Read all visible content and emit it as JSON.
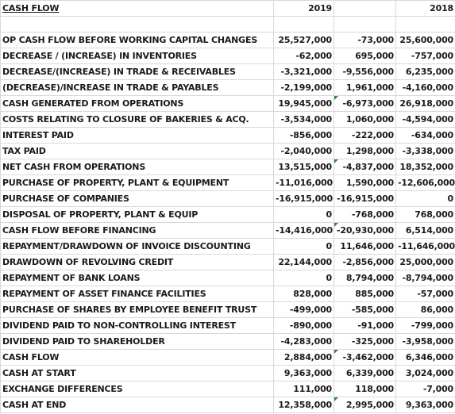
{
  "header": {
    "title": "CASH FLOW",
    "year_a": "2019",
    "year_b": "2018"
  },
  "rows": [
    {
      "label": "",
      "v2019": "",
      "vdiff": "",
      "v2018": "",
      "diff_color": ""
    },
    {
      "label": "OP CASH FLOW BEFORE WORKING CAPITAL CHANGES",
      "v2019": "25,527,000",
      "vdiff": "-73,000",
      "v2018": "25,600,000",
      "diff_color": "r"
    },
    {
      "label": "DECREASE / (INCREASE) IN INVENTORIES",
      "v2019": "-62,000",
      "vdiff": "695,000",
      "v2018": "-757,000",
      "diff_color": "b"
    },
    {
      "label": "DECREASE/(INCREASE) IN TRADE & RECEIVABLES",
      "v2019": "-3,321,000",
      "vdiff": "-9,556,000",
      "v2018": "6,235,000",
      "diff_color": "r"
    },
    {
      "label": "(DECREASE)/INCREASE IN TRADE & PAYABLES",
      "v2019": "-2,199,000",
      "vdiff": "1,961,000",
      "v2018": "-4,160,000",
      "diff_color": "b"
    },
    {
      "label": "CASH GENERATED FROM OPERATIONS",
      "v2019": "19,945,000",
      "vdiff": "-6,973,000",
      "v2018": "26,918,000",
      "diff_color": "r",
      "marker": true
    },
    {
      "label": "COSTS RELATING TO CLOSURE OF BAKERIES & ACQ.",
      "v2019": "-3,534,000",
      "vdiff": "1,060,000",
      "v2018": "-4,594,000",
      "diff_color": "b"
    },
    {
      "label": "INTEREST PAID",
      "v2019": "-856,000",
      "vdiff": "-222,000",
      "v2018": "-634,000",
      "diff_color": "r"
    },
    {
      "label": "TAX PAID",
      "v2019": "-2,040,000",
      "vdiff": "1,298,000",
      "v2018": "-3,338,000",
      "diff_color": "b"
    },
    {
      "label": "NET CASH FROM OPERATIONS",
      "v2019": "13,515,000",
      "vdiff": "-4,837,000",
      "v2018": "18,352,000",
      "diff_color": "r",
      "marker": true
    },
    {
      "label": "PURCHASE OF PROPERTY, PLANT & EQUIPMENT",
      "v2019": "-11,016,000",
      "vdiff": "1,590,000",
      "v2018": "-12,606,000",
      "diff_color": "b"
    },
    {
      "label": "PURCHASE OF COMPANIES",
      "v2019": "-16,915,000",
      "vdiff": "-16,915,000",
      "v2018": "0",
      "diff_color": "r"
    },
    {
      "label": "DISPOSAL OF PROPERTY, PLANT & EQUIP",
      "v2019": "0",
      "vdiff": "-768,000",
      "v2018": "768,000",
      "diff_color": "r"
    },
    {
      "label": "CASH FLOW BEFORE FINANCING",
      "v2019": "-14,416,000",
      "vdiff": "-20,930,000",
      "v2018": "6,514,000",
      "diff_color": "r",
      "marker": true
    },
    {
      "label": "REPAYMENT/DRAWDOWN OF INVOICE DISCOUNTING",
      "v2019": "0",
      "vdiff": "11,646,000",
      "v2018": "-11,646,000",
      "diff_color": "b"
    },
    {
      "label": "DRAWDOWN OF REVOLVING CREDIT",
      "v2019": "22,144,000",
      "vdiff": "-2,856,000",
      "v2018": "25,000,000",
      "diff_color": "r"
    },
    {
      "label": "REPAYMENT OF BANK LOANS",
      "v2019": "0",
      "vdiff": "8,794,000",
      "v2018": "-8,794,000",
      "diff_color": "b"
    },
    {
      "label": "REPAYMENT OF ASSET FINANCE FACILITIES",
      "v2019": "828,000",
      "vdiff": "885,000",
      "v2018": "-57,000",
      "diff_color": "b"
    },
    {
      "label": "PURCHASE OF SHARES BY EMPLOYEE BENEFIT TRUST",
      "v2019": "-499,000",
      "vdiff": "-585,000",
      "v2018": "86,000",
      "diff_color": "r"
    },
    {
      "label": "DIVIDEND PAID TO NON-CONTROLLING INTEREST",
      "v2019": "-890,000",
      "vdiff": "-91,000",
      "v2018": "-799,000",
      "diff_color": "r"
    },
    {
      "label": "DIVIDEND PAID TO SHAREHOLDER",
      "v2019": "-4,283,000",
      "vdiff": "-325,000",
      "v2018": "-3,958,000",
      "diff_color": "r"
    },
    {
      "label": "CASH FLOW",
      "v2019": "2,884,000",
      "vdiff": "-3,462,000",
      "v2018": "6,346,000",
      "diff_color": "r",
      "marker": true
    },
    {
      "label": "CASH AT START",
      "v2019": "9,363,000",
      "vdiff": "6,339,000",
      "v2018": "3,024,000",
      "diff_color": "b"
    },
    {
      "label": "EXCHANGE DIFFERENCES",
      "v2019": "111,000",
      "vdiff": "118,000",
      "v2018": "-7,000",
      "diff_color": "b"
    },
    {
      "label": "CASH AT END",
      "v2019": "12,358,000",
      "vdiff": "2,995,000",
      "v2018": "9,363,000",
      "diff_color": "b",
      "marker": true
    }
  ],
  "colors": {
    "positive_diff": "#1f2c9b",
    "negative_diff": "#b3132a",
    "marker": "#2e8b2e",
    "grid": "#d9d9d9"
  }
}
